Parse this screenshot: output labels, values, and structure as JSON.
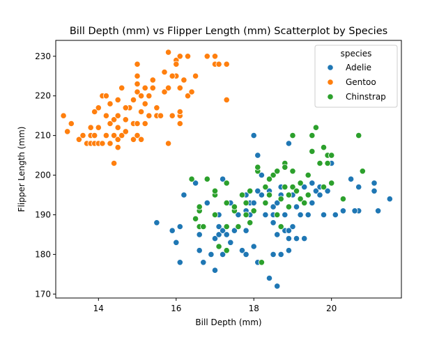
{
  "chart_data": {
    "type": "scatter",
    "title": "Bill Depth (mm) vs Flipper Length (mm) Scatterplot by Species",
    "xlabel": "Bill Depth (mm)",
    "ylabel": "Flipper Length (mm)",
    "xlim": [
      12.9,
      21.8
    ],
    "ylim": [
      169,
      234
    ],
    "xticks": [
      14,
      16,
      18,
      20
    ],
    "yticks": [
      170,
      180,
      190,
      200,
      210,
      220,
      230
    ],
    "grid": false,
    "legend": {
      "title": "species",
      "position": "top-right"
    },
    "series": [
      {
        "name": "Adelie",
        "color": "#1f77b4",
        "points": [
          [
            15.5,
            188
          ],
          [
            15.9,
            186
          ],
          [
            16.0,
            183
          ],
          [
            16.1,
            178
          ],
          [
            16.1,
            187
          ],
          [
            16.2,
            195
          ],
          [
            16.5,
            198
          ],
          [
            16.6,
            181
          ],
          [
            16.6,
            185
          ],
          [
            16.7,
            178
          ],
          [
            16.7,
            187
          ],
          [
            16.8,
            193
          ],
          [
            16.9,
            180
          ],
          [
            17.0,
            176
          ],
          [
            17.0,
            184
          ],
          [
            17.0,
            190
          ],
          [
            17.1,
            185
          ],
          [
            17.1,
            187
          ],
          [
            17.1,
            190
          ],
          [
            17.2,
            180
          ],
          [
            17.2,
            186
          ],
          [
            17.2,
            199
          ],
          [
            17.3,
            185
          ],
          [
            17.3,
            187
          ],
          [
            17.4,
            183
          ],
          [
            17.5,
            186
          ],
          [
            17.6,
            187
          ],
          [
            17.7,
            181
          ],
          [
            17.8,
            180
          ],
          [
            17.8,
            186
          ],
          [
            17.8,
            191
          ],
          [
            17.9,
            193
          ],
          [
            18.0,
            182
          ],
          [
            18.0,
            193
          ],
          [
            18.1,
            178
          ],
          [
            18.2,
            200
          ],
          [
            18.2,
            195
          ],
          [
            18.4,
            174
          ],
          [
            18.5,
            180
          ],
          [
            18.5,
            192
          ],
          [
            18.6,
            172
          ],
          [
            18.6,
            185
          ],
          [
            18.7,
            180
          ],
          [
            18.8,
            190
          ],
          [
            18.9,
            184
          ],
          [
            18.9,
            208
          ],
          [
            19.0,
            187
          ],
          [
            19.1,
            184
          ],
          [
            19.2,
            190
          ],
          [
            19.3,
            184
          ],
          [
            19.4,
            190
          ],
          [
            19.5,
            198
          ],
          [
            19.6,
            196
          ],
          [
            19.7,
            195
          ],
          [
            19.8,
            190
          ],
          [
            19.9,
            196
          ],
          [
            20.0,
            203
          ],
          [
            20.1,
            190
          ],
          [
            20.3,
            191
          ],
          [
            20.5,
            199
          ],
          [
            20.7,
            191
          ],
          [
            20.7,
            197
          ],
          [
            21.1,
            198
          ],
          [
            21.1,
            196
          ],
          [
            21.2,
            191
          ],
          [
            21.5,
            194
          ],
          [
            17.0,
            196
          ],
          [
            17.4,
            193
          ],
          [
            17.9,
            190
          ],
          [
            18.1,
            196
          ],
          [
            18.3,
            190
          ],
          [
            18.4,
            196
          ],
          [
            18.5,
            188
          ],
          [
            18.6,
            193
          ],
          [
            18.7,
            195
          ],
          [
            18.8,
            186
          ],
          [
            18.9,
            181
          ],
          [
            19.0,
            195
          ],
          [
            19.1,
            192
          ],
          [
            19.3,
            197
          ],
          [
            18.0,
            210
          ],
          [
            18.1,
            205
          ],
          [
            19.5,
            193
          ],
          [
            19.7,
            197
          ],
          [
            20.6,
            191
          ],
          [
            17.6,
            190
          ],
          [
            17.8,
            195
          ],
          [
            18.1,
            202
          ],
          [
            18.5,
            190
          ],
          [
            18.7,
            197
          ],
          [
            18.9,
            186
          ]
        ]
      },
      {
        "name": "Gentoo",
        "color": "#ff7f0e",
        "points": [
          [
            13.1,
            215
          ],
          [
            13.2,
            211
          ],
          [
            13.3,
            213
          ],
          [
            13.5,
            209
          ],
          [
            13.6,
            210
          ],
          [
            13.7,
            208
          ],
          [
            13.8,
            208
          ],
          [
            13.8,
            210
          ],
          [
            13.9,
            208
          ],
          [
            13.9,
            210
          ],
          [
            13.9,
            216
          ],
          [
            14.0,
            208
          ],
          [
            14.0,
            212
          ],
          [
            14.0,
            217
          ],
          [
            14.1,
            208
          ],
          [
            14.2,
            210
          ],
          [
            14.2,
            215
          ],
          [
            14.1,
            220
          ],
          [
            14.2,
            220
          ],
          [
            14.3,
            213
          ],
          [
            14.3,
            218
          ],
          [
            14.4,
            203
          ],
          [
            14.4,
            210
          ],
          [
            14.4,
            214
          ],
          [
            14.5,
            207
          ],
          [
            14.5,
            209
          ],
          [
            14.5,
            212
          ],
          [
            14.5,
            215
          ],
          [
            14.5,
            219
          ],
          [
            14.6,
            210
          ],
          [
            14.6,
            222
          ],
          [
            14.7,
            211
          ],
          [
            14.7,
            214
          ],
          [
            14.8,
            217
          ],
          [
            14.9,
            209
          ],
          [
            14.9,
            213
          ],
          [
            14.9,
            219
          ],
          [
            15.0,
            210
          ],
          [
            15.0,
            213
          ],
          [
            15.0,
            221
          ],
          [
            15.0,
            223
          ],
          [
            15.0,
            225
          ],
          [
            15.0,
            228
          ],
          [
            15.1,
            209
          ],
          [
            15.1,
            216
          ],
          [
            15.2,
            213
          ],
          [
            15.2,
            218
          ],
          [
            15.3,
            215
          ],
          [
            15.3,
            220
          ],
          [
            15.4,
            222
          ],
          [
            15.4,
            224
          ],
          [
            15.5,
            215
          ],
          [
            15.6,
            215
          ],
          [
            15.7,
            221
          ],
          [
            15.7,
            226
          ],
          [
            15.8,
            208
          ],
          [
            15.8,
            222
          ],
          [
            15.8,
            231
          ],
          [
            15.9,
            215
          ],
          [
            16.0,
            225
          ],
          [
            16.0,
            229
          ],
          [
            16.1,
            222
          ],
          [
            16.1,
            230
          ],
          [
            16.1,
            213
          ],
          [
            16.1,
            215
          ],
          [
            16.1,
            216
          ],
          [
            16.2,
            224
          ],
          [
            16.3,
            220
          ],
          [
            16.3,
            230
          ],
          [
            16.4,
            221
          ],
          [
            16.5,
            225
          ],
          [
            16.8,
            230
          ],
          [
            17.0,
            228
          ],
          [
            17.0,
            230
          ],
          [
            17.1,
            228
          ],
          [
            17.3,
            228
          ],
          [
            17.3,
            219
          ],
          [
            15.1,
            220
          ],
          [
            15.5,
            217
          ],
          [
            14.7,
            217
          ],
          [
            13.8,
            212
          ],
          [
            14.3,
            208
          ],
          [
            15.2,
            222
          ],
          [
            15.9,
            225
          ],
          [
            16.0,
            228
          ]
        ]
      },
      {
        "name": "Chinstrap",
        "color": "#2ca02c",
        "points": [
          [
            16.4,
            199
          ],
          [
            16.5,
            189
          ],
          [
            16.6,
            187
          ],
          [
            16.6,
            191
          ],
          [
            16.6,
            192
          ],
          [
            16.7,
            187
          ],
          [
            16.8,
            199
          ],
          [
            17.0,
            190
          ],
          [
            17.0,
            195
          ],
          [
            17.0,
            196
          ],
          [
            17.1,
            182
          ],
          [
            17.3,
            181
          ],
          [
            17.3,
            187
          ],
          [
            17.3,
            193
          ],
          [
            17.3,
            198
          ],
          [
            17.5,
            191
          ],
          [
            17.6,
            187
          ],
          [
            17.7,
            195
          ],
          [
            17.8,
            190
          ],
          [
            17.8,
            193
          ],
          [
            17.9,
            188
          ],
          [
            17.9,
            196
          ],
          [
            18.0,
            191
          ],
          [
            18.1,
            201
          ],
          [
            18.1,
            202
          ],
          [
            18.2,
            178
          ],
          [
            18.3,
            193
          ],
          [
            18.3,
            197
          ],
          [
            18.4,
            195
          ],
          [
            18.5,
            200
          ],
          [
            18.6,
            201
          ],
          [
            18.6,
            190
          ],
          [
            18.7,
            187
          ],
          [
            18.7,
            194
          ],
          [
            18.8,
            197
          ],
          [
            18.8,
            203
          ],
          [
            18.8,
            202
          ],
          [
            18.9,
            192
          ],
          [
            18.9,
            195
          ],
          [
            19.0,
            197
          ],
          [
            19.0,
            201
          ],
          [
            19.0,
            210
          ],
          [
            19.1,
            196
          ],
          [
            19.2,
            194
          ],
          [
            19.3,
            193
          ],
          [
            19.4,
            195
          ],
          [
            19.4,
            200
          ],
          [
            19.5,
            206
          ],
          [
            19.5,
            210
          ],
          [
            19.6,
            212
          ],
          [
            19.7,
            203
          ],
          [
            19.8,
            197
          ],
          [
            19.8,
            207
          ],
          [
            19.9,
            203
          ],
          [
            19.9,
            205
          ],
          [
            20.0,
            198
          ],
          [
            20.0,
            205
          ],
          [
            20.3,
            194
          ],
          [
            20.7,
            210
          ],
          [
            20.8,
            201
          ],
          [
            17.5,
            192
          ],
          [
            18.4,
            199
          ],
          [
            19.2,
            198
          ]
        ]
      }
    ]
  }
}
